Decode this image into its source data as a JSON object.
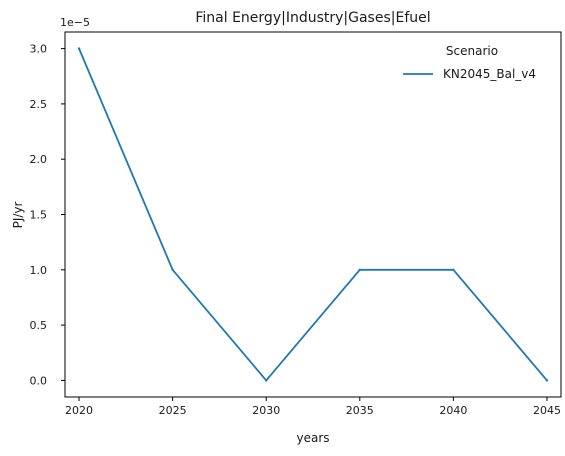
{
  "chart_data": {
    "type": "line",
    "title": "Final Energy|Industry|Gases|Efuel",
    "xlabel": "years",
    "ylabel": "PJ/yr",
    "y_offset_label": "1e−5",
    "x": [
      2020,
      2025,
      2030,
      2035,
      2040,
      2045
    ],
    "x_ticks": [
      "2020",
      "2025",
      "2030",
      "2035",
      "2040",
      "2045"
    ],
    "y_ticks": [
      "0.0",
      "0.5",
      "1.0",
      "1.5",
      "2.0",
      "2.5",
      "3.0"
    ],
    "y_tick_values": [
      0.0,
      0.5,
      1.0,
      1.5,
      2.0,
      2.5,
      3.0
    ],
    "ylim": [
      -0.15,
      3.15
    ],
    "xlim": [
      2019.25,
      2045.75
    ],
    "grid": false,
    "legend": {
      "title": "Scenario",
      "placement": "top-right"
    },
    "series": [
      {
        "name": "KN2045_Bal_v4",
        "color": "#1f77b4",
        "values": [
          3.0,
          1.0,
          0.0,
          1.0,
          1.0,
          0.0
        ]
      }
    ]
  }
}
